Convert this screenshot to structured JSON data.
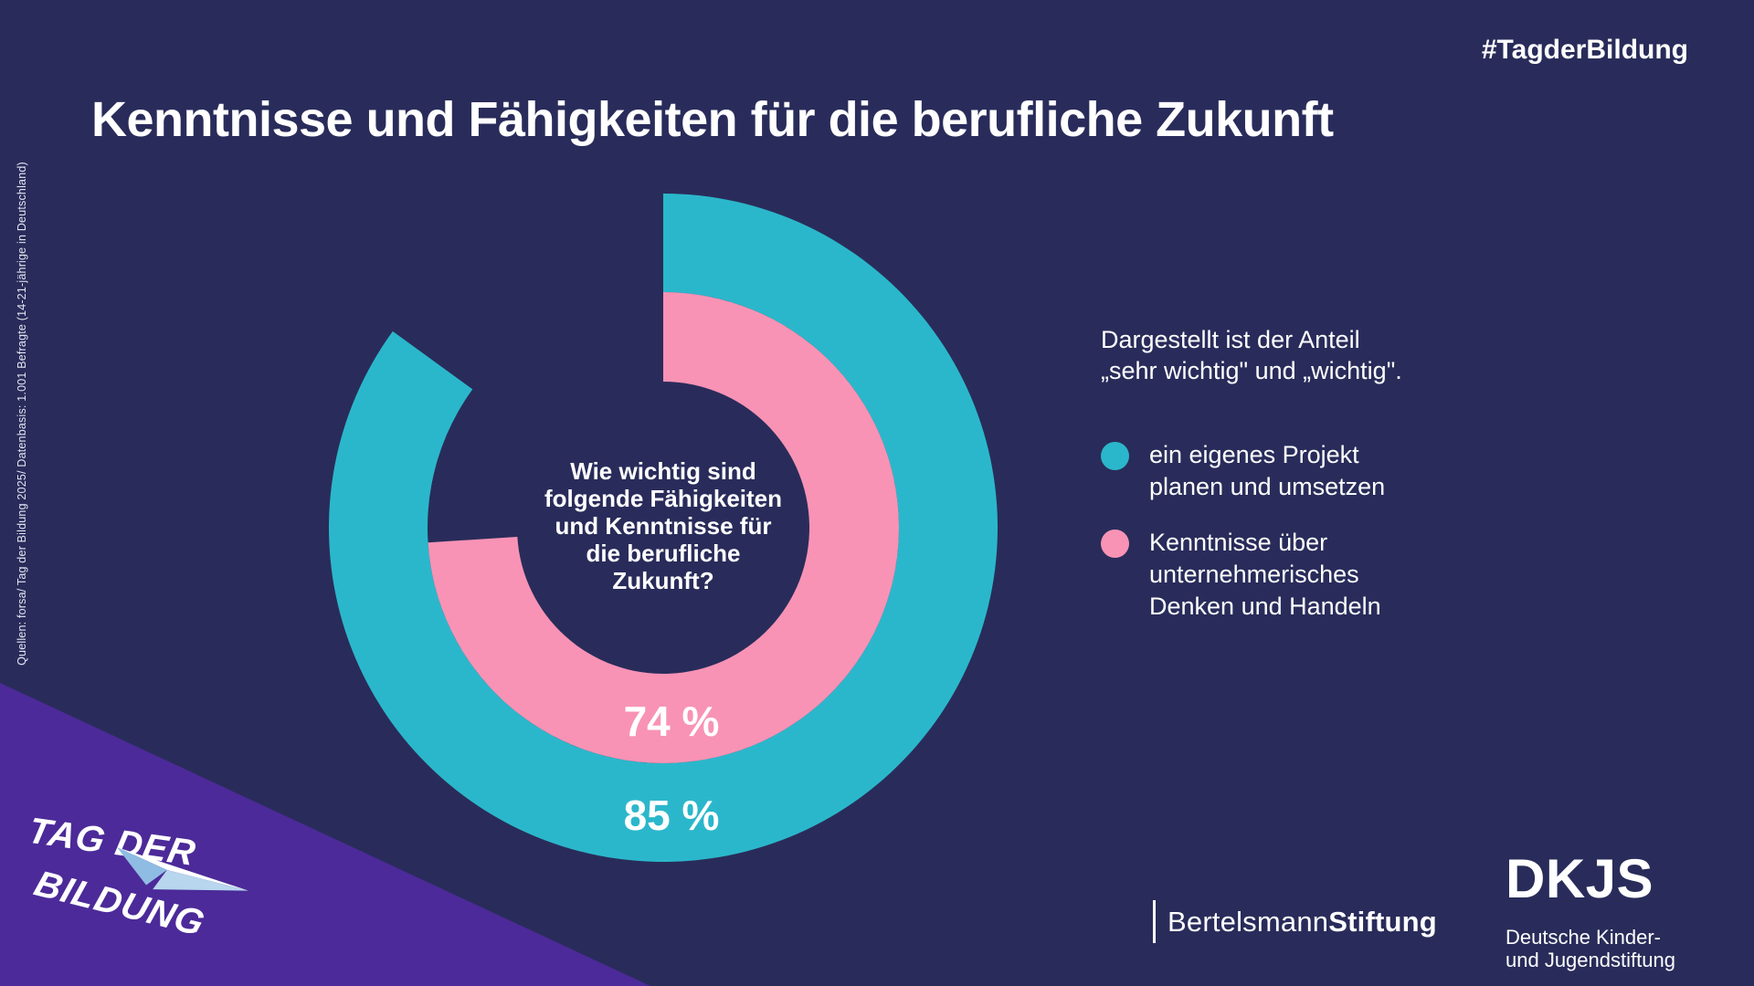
{
  "meta": {
    "hashtag": "#TagderBildung",
    "title": "Kenntnisse und Fähigkeiten für die berufliche Zukunft",
    "source_note": "Quellen: forsa/ Tag der Bildung 2025/ Datenbasis: 1.001 Befragte (14-21-jährige in Deutschland)"
  },
  "colors": {
    "background": "#292c5a",
    "accent_teal": "#2bb7cb",
    "accent_pink": "#f893b5",
    "corner_purple": "#4c2a99",
    "text": "#ffffff"
  },
  "chart_data": {
    "type": "donut",
    "unit": "%",
    "start_angle_deg": 0,
    "direction": "clockwise",
    "center_question": "Wie wichtig sind\nfolgende Fähigkeiten\nund Kenntnisse für\ndie berufliche\nZukunft?",
    "note": "Dargestellt ist der Anteil\n„sehr wichtig\" und „wichtig\".",
    "series": [
      {
        "name": "ein eigenes Projekt planen und umsetzen",
        "value": 85,
        "label": "85 %",
        "color": "#2bb7cb",
        "ring": "outer"
      },
      {
        "name": "Kenntnisse über unternehmerisches Denken und Handeln",
        "value": 74,
        "label": "74 %",
        "color": "#f893b5",
        "ring": "inner"
      }
    ],
    "legend": {
      "items": [
        {
          "label": "ein eigenes Projekt\nplanen und umsetzen"
        },
        {
          "label": "Kenntnisse über\nunternehmerisches\nDenken und Handeln"
        }
      ]
    }
  },
  "footer": {
    "bertelsmann": {
      "name_regular": "Bertelsmann",
      "name_bold": "Stiftung"
    },
    "dkjs": {
      "wordmark": "DKJS",
      "subtitle": "Deutsche Kinder-\nund Jugendstiftung"
    },
    "tag_der_bildung": {
      "line1": "TAG DER",
      "line2": "BILDUNG"
    }
  }
}
